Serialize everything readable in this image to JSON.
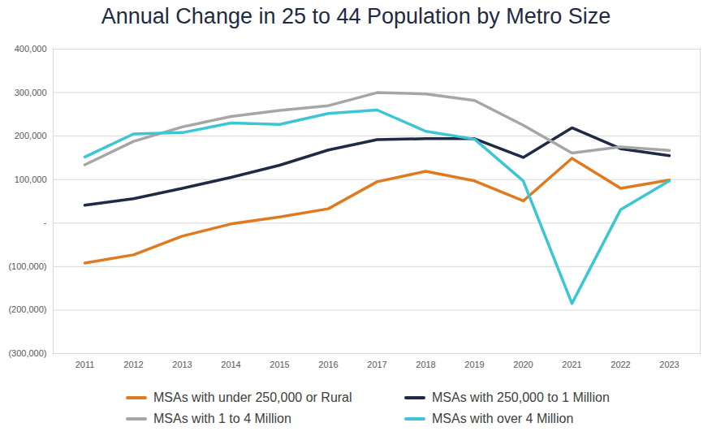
{
  "chart_data": {
    "type": "line",
    "title": "Annual Change in 25 to 44 Population by Metro Size",
    "categories": [
      "2011",
      "2012",
      "2013",
      "2014",
      "2015",
      "2016",
      "2017",
      "2018",
      "2019",
      "2020",
      "2021",
      "2022",
      "2023"
    ],
    "series": [
      {
        "name": "MSAs with under 250,000 or Rural",
        "color": "#e07a1f",
        "values": [
          -92000,
          -73000,
          -30000,
          -2000,
          14000,
          33000,
          95000,
          119000,
          97000,
          51000,
          149000,
          80000,
          99000
        ]
      },
      {
        "name": "MSAs with 250,000 to 1 Million",
        "color": "#1f2a44",
        "values": [
          41000,
          56000,
          80000,
          105000,
          133000,
          168000,
          192000,
          194000,
          194000,
          151000,
          219000,
          171000,
          155000
        ]
      },
      {
        "name": "MSAs with 1 to 4 Million",
        "color": "#a6a6a6",
        "values": [
          134000,
          188000,
          221000,
          245000,
          259000,
          270000,
          300000,
          297000,
          282000,
          225000,
          161000,
          175000,
          167000
        ]
      },
      {
        "name": "MSAs with over 4 Million",
        "color": "#3cc5d3",
        "values": [
          152000,
          205000,
          208000,
          230000,
          227000,
          252000,
          260000,
          211000,
          193000,
          97000,
          -185000,
          31000,
          97000
        ]
      }
    ],
    "ylim": [
      -300000,
      400000
    ],
    "yticks": [
      {
        "value": -300000,
        "label": "(300,000)"
      },
      {
        "value": -200000,
        "label": "(200,000)"
      },
      {
        "value": -100000,
        "label": "(100,000)"
      },
      {
        "value": 0,
        "label": "-"
      },
      {
        "value": 100000,
        "label": "100,000"
      },
      {
        "value": 200000,
        "label": "200,000"
      },
      {
        "value": 300000,
        "label": "300,000"
      },
      {
        "value": 400000,
        "label": "400,000"
      }
    ],
    "grid": true,
    "legend": "bottom"
  }
}
